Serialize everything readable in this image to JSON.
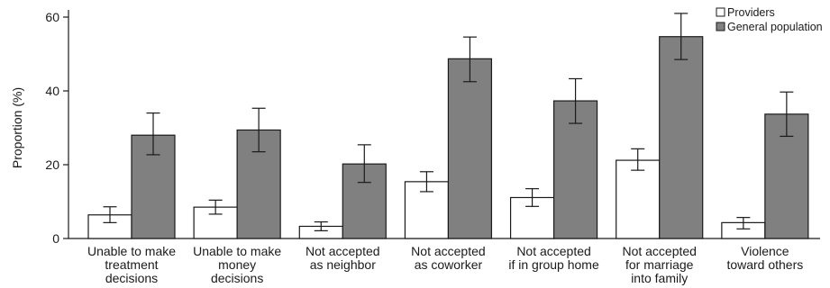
{
  "chart_data": {
    "type": "bar",
    "ylabel": "Proportion (%)",
    "xlabel": "",
    "ylim": [
      0,
      60
    ],
    "yticks": [
      0,
      20,
      40,
      60
    ],
    "legend_position": "top-right",
    "categories": [
      [
        "Unable to make",
        "treatment",
        "decisions"
      ],
      [
        "Unable to make",
        "money",
        "decisions"
      ],
      [
        "Not accepted",
        "as neighbor"
      ],
      [
        "Not accepted",
        "as coworker"
      ],
      [
        "Not accepted",
        "if in group home"
      ],
      [
        "Not accepted",
        "for marriage",
        "into family"
      ],
      [
        "Violence",
        "toward others"
      ]
    ],
    "series": [
      {
        "name": "Providers",
        "color": "#ffffff",
        "values": [
          6.4,
          8.5,
          3.3,
          15.4,
          11.1,
          21.2,
          4.3
        ],
        "error_low": [
          4.3,
          6.6,
          2.1,
          12.7,
          8.7,
          18.5,
          2.6
        ],
        "error_high": [
          8.6,
          10.4,
          4.5,
          18.1,
          13.5,
          24.3,
          5.7
        ]
      },
      {
        "name": "General population",
        "color": "#808080",
        "values": [
          28.0,
          29.4,
          20.2,
          48.7,
          37.3,
          54.7,
          33.7
        ],
        "error_low": [
          22.7,
          23.5,
          15.2,
          42.5,
          31.2,
          48.5,
          27.7
        ],
        "error_high": [
          34.0,
          35.3,
          25.4,
          54.6,
          43.3,
          61.0,
          39.7
        ]
      }
    ]
  }
}
